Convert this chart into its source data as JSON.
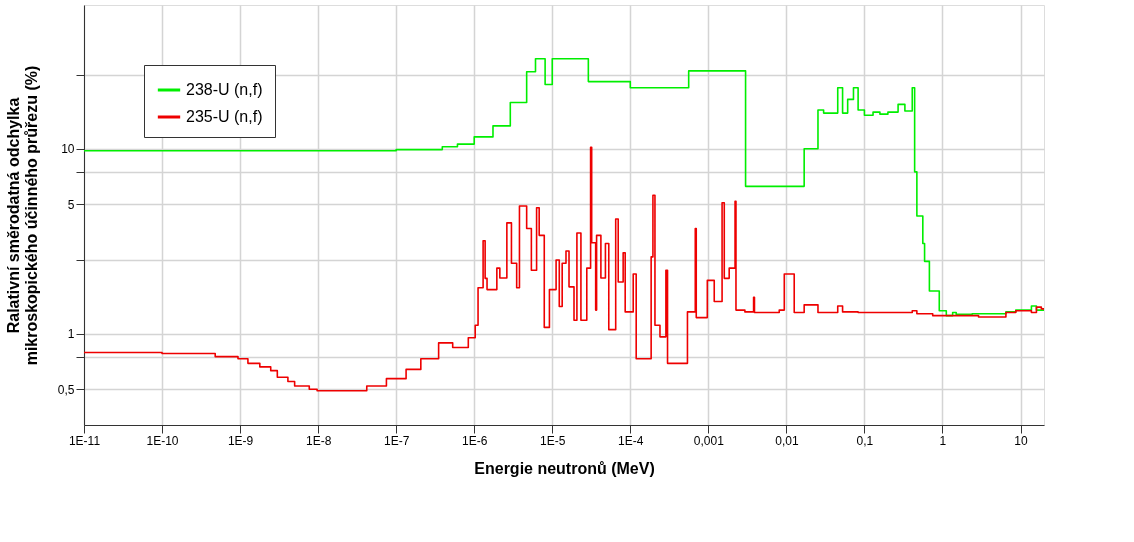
{
  "chart_data": {
    "type": "step",
    "xlabel": "Energie neutronů (MeV)",
    "ylabel": "Ralativní směrodatná odchylka\nmikroskopického účinného průřezu (%)",
    "log": "xy",
    "grid": true,
    "legend": "top left",
    "marker": "none",
    "line_style": "solid",
    "xlim": [
      1e-11,
      20
    ],
    "ylim": [
      0.32,
      60
    ],
    "xticks": [
      {
        "value": 1e-11,
        "label": "1E-11"
      },
      {
        "value": 1e-10,
        "label": "1E-10"
      },
      {
        "value": 1e-09,
        "label": "1E-9"
      },
      {
        "value": 1e-08,
        "label": "1E-8"
      },
      {
        "value": 1e-07,
        "label": "1E-7"
      },
      {
        "value": 1e-06,
        "label": "1E-6"
      },
      {
        "value": 1e-05,
        "label": "1E-5"
      },
      {
        "value": 0.0001,
        "label": "1E-4"
      },
      {
        "value": 0.001,
        "label": "0,001"
      },
      {
        "value": 0.01,
        "label": "0,01"
      },
      {
        "value": 0.1,
        "label": "0,1"
      },
      1,
      10
    ],
    "yticks": [
      {
        "value": 0.5,
        "label": "0,5"
      },
      {
        "value": 0.75,
        "label": null
      },
      1,
      {
        "value": 2.5,
        "label": null
      },
      5,
      {
        "value": 7.5,
        "label": null
      },
      10,
      {
        "value": 25,
        "label": null
      }
    ],
    "series": [
      {
        "name": "238-U (n,f)",
        "color": "#00ee00",
        "x": [
          1e-11,
          1e-07,
          3.9e-07,
          6.1e-07,
          1e-06,
          1.74e-06,
          2.9e-06,
          4.7e-06,
          6.1e-06,
          8.1e-06,
          1e-05,
          2.9e-05,
          0.0001,
          0.00056,
          0.003,
          0.0169,
          0.0254,
          0.03,
          0.0455,
          0.0525,
          0.061,
          0.0724,
          0.083,
          0.1,
          0.129,
          0.158,
          0.2,
          0.27,
          0.33,
          0.41,
          0.44,
          0.47,
          0.56,
          0.59,
          0.68,
          0.91,
          1.12,
          1.35,
          1.5,
          2.4,
          6.5,
          8.7,
          13.8,
          16,
          20
        ],
        "values": [
          9.75,
          9.9,
          10.25,
          10.6,
          11.6,
          13.3,
          17.8,
          26.1,
          30.7,
          22.3,
          30.7,
          23.1,
          21.4,
          26.4,
          6.26,
          10,
          16.2,
          15.6,
          21.4,
          15.6,
          18.5,
          21.4,
          16.2,
          15.2,
          15.8,
          15.4,
          15.8,
          17.4,
          16.0,
          21.4,
          7.5,
          4.33,
          3.07,
          2.46,
          1.7,
          1.33,
          1.25,
          1.3,
          1.27,
          1.28,
          1.31,
          1.34,
          1.41,
          1.34,
          1.34
        ]
      },
      {
        "name": "235-U (n,f)",
        "color": "#ee0000",
        "x": [
          1e-11,
          1e-10,
          4.8e-10,
          9.4e-10,
          1.26e-09,
          1.79e-09,
          2.47e-09,
          3e-09,
          4.1e-09,
          5e-09,
          7.7e-09,
          9.7e-09,
          4.2e-08,
          7.5e-08,
          1.34e-07,
          2.07e-07,
          3.5e-07,
          5.3e-07,
          8.4e-07,
          1.03e-06,
          1.12e-06,
          1.3e-06,
          1.38e-06,
          1.46e-06,
          1.95e-06,
          2.13e-06,
          2.62e-06,
          3e-06,
          3.5e-06,
          3.8e-06,
          4.7e-06,
          5.4e-06,
          6.3e-06,
          6.8e-06,
          7.9e-06,
          9.2e-06,
          1.12e-05,
          1.23e-05,
          1.34e-05,
          1.5e-05,
          1.64e-05,
          1.9e-05,
          2.07e-05,
          2.33e-05,
          2.77e-05,
          3.1e-05,
          3.2e-05,
          3.6e-05,
          3.7e-05,
          4.2e-05,
          4.8e-05,
          5.3e-05,
          6.5e-05,
          7e-05,
          8.1e-05,
          8.6e-05,
          0.000109,
          0.000119,
          0.000185,
          0.000195,
          0.000207,
          0.00024,
          0.000286,
          0.0003,
          0.00054,
          0.00068,
          0.0007,
          0.00097,
          0.00119,
          0.0015,
          0.0016,
          0.00185,
          0.0022,
          0.00226,
          0.00294,
          0.0038,
          0.0039,
          0.0081,
          0.0094,
          0.0126,
          0.0169,
          0.0254,
          0.0455,
          0.0525,
          0.083,
          0.41,
          0.47,
          0.75,
          2.9,
          6.5,
          8.7,
          13.8,
          16,
          18.5,
          20
        ],
        "values": [
          0.79,
          0.78,
          0.75,
          0.73,
          0.69,
          0.66,
          0.63,
          0.58,
          0.55,
          0.52,
          0.5,
          0.49,
          0.52,
          0.57,
          0.64,
          0.73,
          0.89,
          0.84,
          0.95,
          1.11,
          1.77,
          3.18,
          1.99,
          1.73,
          2.26,
          2.0,
          3.97,
          2.4,
          1.77,
          4.9,
          3.7,
          2.2,
          4.8,
          3.4,
          1.08,
          1.73,
          2.5,
          1.4,
          2.4,
          2.8,
          1.79,
          1.18,
          3.5,
          1.18,
          2.26,
          10.2,
          3.1,
          1.34,
          3.4,
          2.0,
          3.07,
          1.05,
          4.17,
          1.9,
          2.74,
          1.31,
          2.1,
          0.73,
          2.6,
          5.6,
          1.11,
          0.96,
          2.2,
          0.69,
          1.31,
          3.7,
          1.22,
          1.94,
          1.49,
          5.1,
          1.99,
          2.26,
          5.2,
          1.34,
          1.31,
          1.57,
          1.3,
          1.34,
          2.1,
          1.3,
          1.43,
          1.3,
          1.41,
          1.31,
          1.3,
          1.33,
          1.28,
          1.25,
          1.23,
          1.3,
          1.33,
          1.3,
          1.39,
          1.36,
          1.36
        ]
      }
    ]
  }
}
